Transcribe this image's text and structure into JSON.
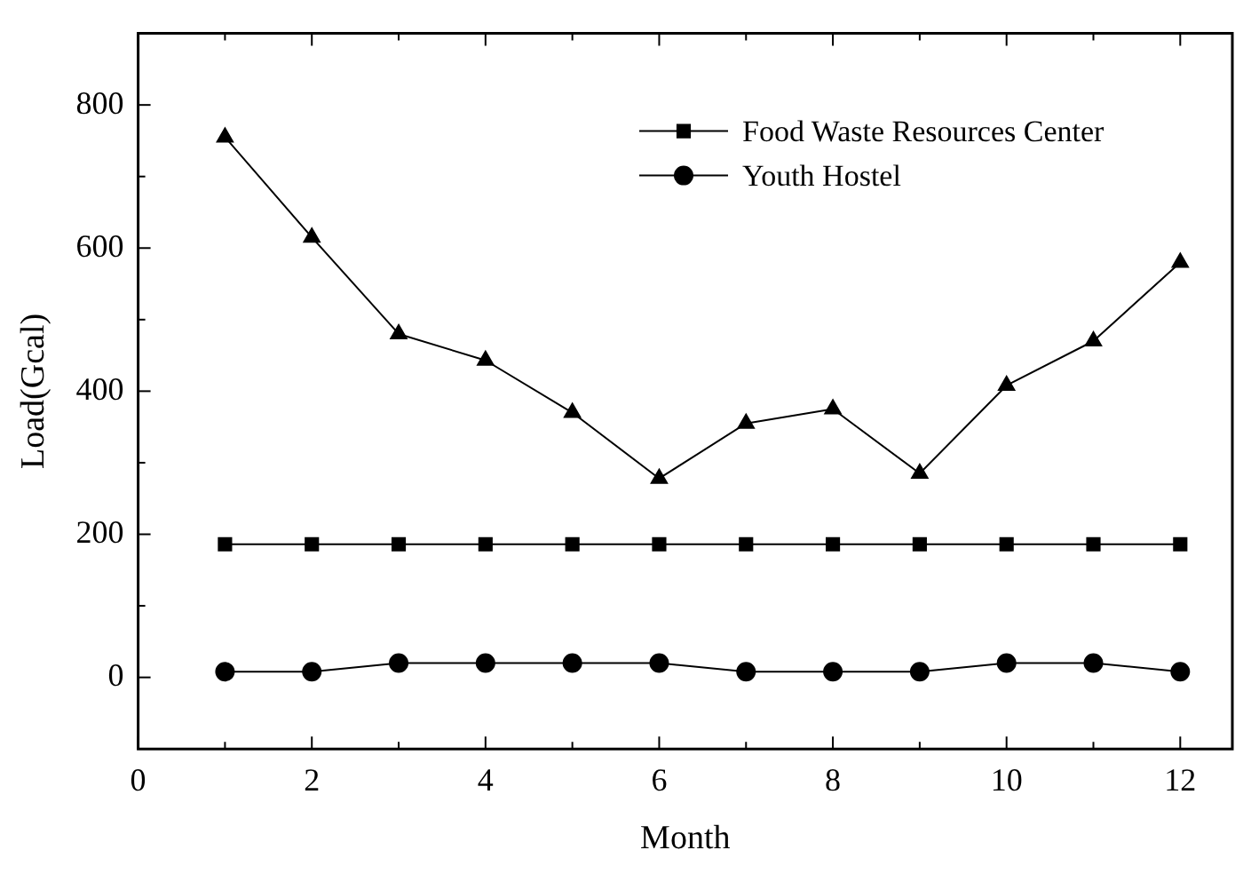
{
  "chart_data": {
    "type": "line",
    "xlabel": "Month",
    "ylabel": "Load(Gcal)",
    "x": [
      1,
      2,
      3,
      4,
      5,
      6,
      7,
      8,
      9,
      10,
      11,
      12
    ],
    "series": [
      {
        "color": "#000000",
        "marker": "triangle",
        "values": [
          755,
          615,
          480,
          443,
          370,
          278,
          355,
          375,
          285,
          408,
          470,
          580
        ]
      },
      {
        "name": "Food Waste Resources Center",
        "color": "#000000",
        "marker": "square",
        "values": [
          186,
          186,
          186,
          186,
          186,
          186,
          186,
          186,
          186,
          186,
          186,
          186
        ]
      },
      {
        "name": "Youth Hostel",
        "color": "#000000",
        "marker": "circle",
        "values": [
          8,
          8,
          20,
          20,
          20,
          20,
          8,
          8,
          8,
          20,
          20,
          8
        ]
      }
    ],
    "xlim": [
      0,
      12.6
    ],
    "xticks": [
      0,
      2,
      4,
      6,
      8,
      10,
      12
    ],
    "ylim": [
      -100,
      900
    ],
    "yticks": [
      0,
      200,
      400,
      600,
      800
    ],
    "grid": false,
    "legend": "top right",
    "line_style": "solid"
  }
}
